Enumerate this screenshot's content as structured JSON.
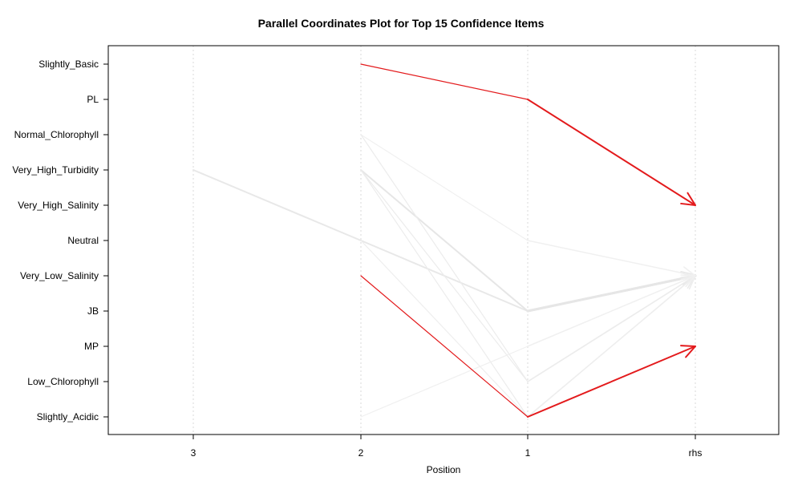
{
  "chart_data": {
    "type": "parallel-coordinates",
    "title": "Parallel Coordinates Plot for Top 15 Confidence Items",
    "xlabel": "Position",
    "ylabel": "",
    "x_categories": [
      "3",
      "2",
      "1",
      "rhs"
    ],
    "y_categories": [
      "Slightly_Basic",
      "PL",
      "Normal_Chlorophyll",
      "Very_High_Turbidity",
      "Very_High_Salinity",
      "Neutral",
      "Very_Low_Salinity",
      "JB",
      "MP",
      "Low_Chlorophyll",
      "Slightly_Acidic"
    ],
    "grid": "vertical dotted",
    "series": [
      {
        "path": [
          "",
          "Slightly_Basic",
          "PL",
          "Very_High_Salinity"
        ],
        "color": "#e31a1c",
        "width": 2
      },
      {
        "path": [
          "",
          "Very_Low_Salinity",
          "Slightly_Acidic",
          "MP"
        ],
        "color": "#e31a1c",
        "width": 2
      },
      {
        "path": [
          "Very_High_Turbidity",
          "Neutral",
          "JB",
          "Very_Low_Salinity"
        ],
        "color": "#e8e8e8",
        "width": 3
      },
      {
        "path": [
          "",
          "Very_High_Turbidity",
          "JB",
          "Very_Low_Salinity"
        ],
        "color": "#e6e6e6",
        "width": 3
      },
      {
        "path": [
          "",
          "Normal_Chlorophyll",
          "Neutral",
          "Very_Low_Salinity"
        ],
        "color": "#f0f0f0",
        "width": 1.5
      },
      {
        "path": [
          "",
          "Normal_Chlorophyll",
          "Low_Chlorophyll",
          "Very_Low_Salinity"
        ],
        "color": "#ececec",
        "width": 1.5
      },
      {
        "path": [
          "",
          "Very_High_Turbidity",
          "Low_Chlorophyll",
          "Very_Low_Salinity"
        ],
        "color": "#ececec",
        "width": 1.5
      },
      {
        "path": [
          "",
          "Very_High_Turbidity",
          "Slightly_Acidic",
          "Very_Low_Salinity"
        ],
        "color": "#ececec",
        "width": 1.5
      },
      {
        "path": [
          "",
          "Neutral",
          "Slightly_Acidic",
          "Very_Low_Salinity"
        ],
        "color": "#eeeeee",
        "width": 1.5
      },
      {
        "path": [
          "",
          "Slightly_Acidic",
          "MP",
          "Very_Low_Salinity"
        ],
        "color": "#f0f0f0",
        "width": 1.5
      }
    ]
  }
}
